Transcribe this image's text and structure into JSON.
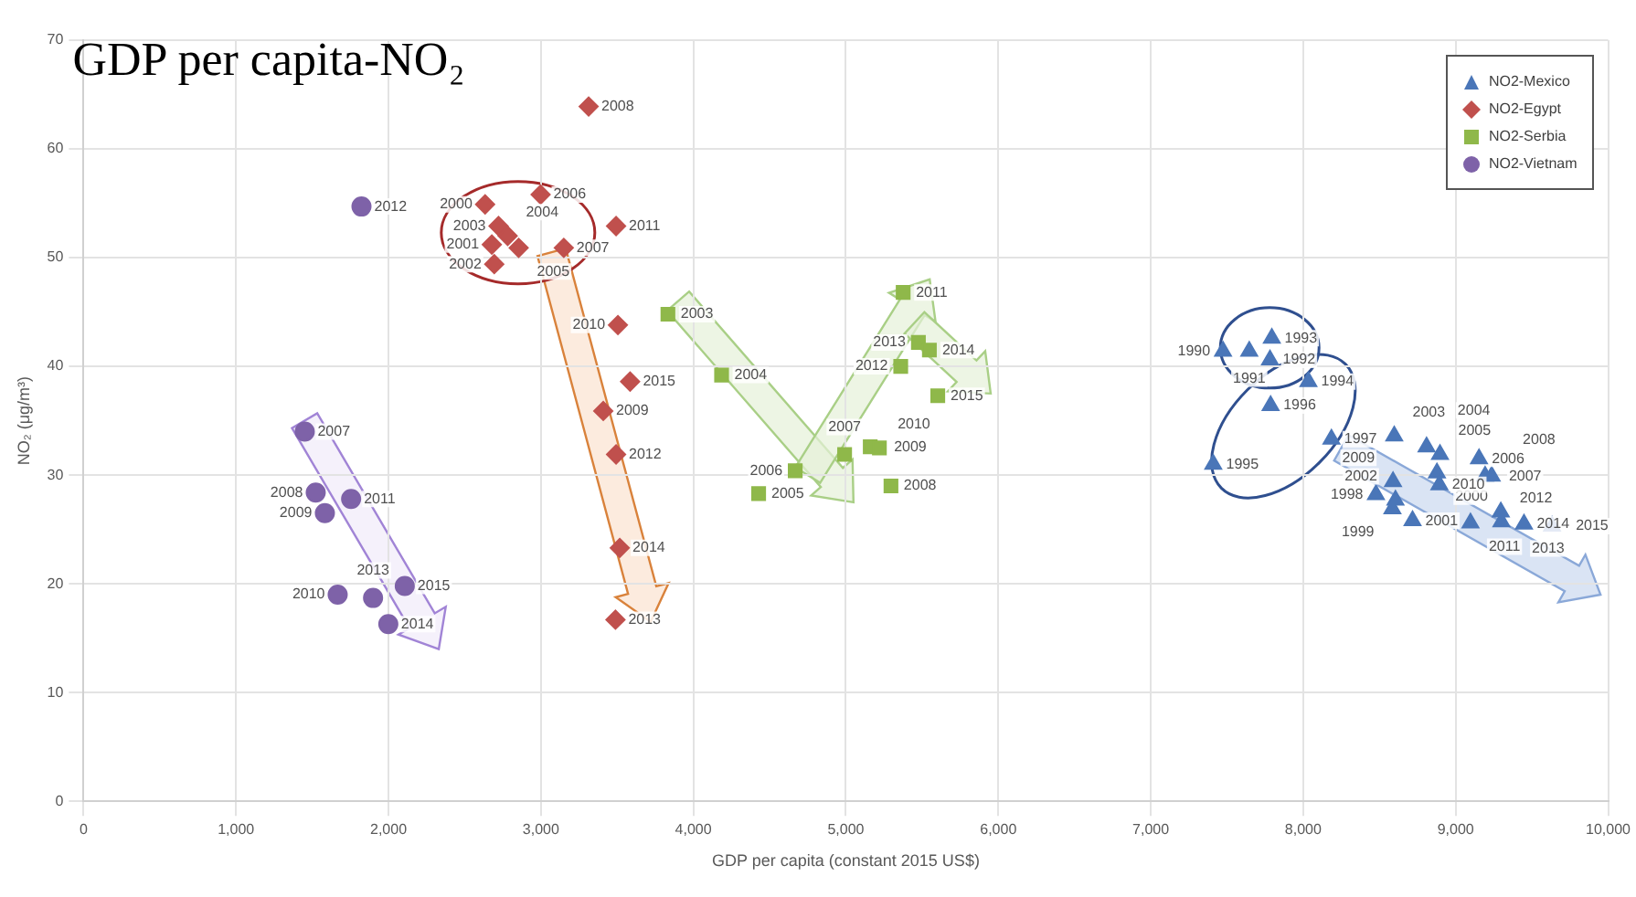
{
  "chart_data": {
    "type": "scatter",
    "title": "GDP per capita-NO₂",
    "xlabel": "GDP per capita (constant 2015 US$)",
    "ylabel": "NO₂ (μg/m³)",
    "xlim": [
      0,
      10000
    ],
    "xticks": [
      0,
      {
        "value": 1000,
        "label": "1,000"
      },
      {
        "value": 2000,
        "label": "2,000"
      },
      {
        "value": 3000,
        "label": "3,000"
      },
      {
        "value": 4000,
        "label": "4,000"
      },
      {
        "value": 5000,
        "label": "5,000"
      },
      {
        "value": 6000,
        "label": "6,000"
      },
      {
        "value": 7000,
        "label": "7,000"
      },
      {
        "value": 8000,
        "label": "8,000"
      },
      {
        "value": 9000,
        "label": "9,000"
      },
      {
        "value": 10000,
        "label": "10,000"
      }
    ],
    "ylim": [
      0,
      70
    ],
    "yticks": [
      0,
      10,
      20,
      30,
      40,
      50,
      60,
      70
    ],
    "grid": true,
    "legend": "top right",
    "series": [
      {
        "name": "NO2-Mexico",
        "color": "#4a76b8",
        "marker": "triangle",
        "x": [
          7474,
          7646,
          7782,
          7794,
          8034,
          7410,
          7786,
          8185,
          8477,
          8585,
          8877,
          8717,
          8605,
          8597,
          8809,
          8897,
          9153,
          9193,
          9236,
          8589,
          8893,
          9097,
          9300,
          9296,
          9448,
          9632
        ],
        "values": [
          41.4,
          41.4,
          40.6,
          42.6,
          38.6,
          31.0,
          36.4,
          33.3,
          28.2,
          26.9,
          30.2,
          25.8,
          27.7,
          33.6,
          32.6,
          31.9,
          31.5,
          29.9,
          29.9,
          29.4,
          29.1,
          25.6,
          25.7,
          26.6,
          25.5,
          25.3
        ]
      },
      {
        "name": "NO2-Egypt",
        "color": "#c0504d",
        "marker": "diamond",
        "x": [
          2634,
          2678,
          2694,
          2722,
          2782,
          2854,
          2998,
          3150,
          3313,
          3409,
          3505,
          3493,
          3493,
          3489,
          3517,
          3585
        ],
        "values": [
          54.9,
          51.2,
          49.4,
          52.9,
          52.0,
          50.9,
          55.8,
          50.9,
          63.9,
          35.9,
          43.8,
          52.9,
          31.9,
          16.7,
          23.3,
          38.6
        ]
      },
      {
        "name": "NO2-Serbia",
        "color": "#8fb84a",
        "marker": "square",
        "x": [
          3833,
          4185,
          4428,
          4668,
          4992,
          5296,
          5160,
          5220,
          5376,
          5360,
          5476,
          5548,
          5603
        ],
        "values": [
          44.8,
          39.2,
          28.3,
          30.4,
          31.9,
          29.0,
          32.6,
          32.5,
          46.8,
          40.0,
          42.2,
          41.5,
          37.3
        ]
      },
      {
        "name": "NO2-Vietnam",
        "color": "#7e62a8",
        "marker": "circle",
        "x": [
          1451,
          1523,
          1583,
          1667,
          1755,
          1823,
          1899,
          1999,
          2107
        ],
        "values": [
          34.0,
          28.4,
          26.5,
          19.0,
          27.8,
          54.7,
          18.7,
          16.3,
          19.8
        ]
      }
    ],
    "annotations": [
      {
        "text": "1990",
        "x": 7474,
        "y": 41.4
      },
      {
        "text": "1991",
        "x": 7646,
        "y": 41.4
      },
      {
        "text": "1992",
        "x": 7782,
        "y": 40.6
      },
      {
        "text": "1993",
        "x": 7794,
        "y": 42.6
      },
      {
        "text": "1994",
        "x": 8034,
        "y": 38.6
      },
      {
        "text": "1995",
        "x": 7410,
        "y": 31.0
      },
      {
        "text": "1996",
        "x": 7786,
        "y": 36.4
      },
      {
        "text": "1997",
        "x": 8185,
        "y": 33.3
      },
      {
        "text": "1998",
        "x": 8477,
        "y": 28.2
      },
      {
        "text": "1999",
        "x": 8585,
        "y": 26.9
      },
      {
        "text": "2000",
        "x": 8877,
        "y": 30.2
      },
      {
        "text": "2001",
        "x": 8717,
        "y": 25.8
      },
      {
        "text": "2002",
        "x": 8605,
        "y": 27.7
      },
      {
        "text": "2003",
        "x": 8597,
        "y": 33.6
      },
      {
        "text": "2004",
        "x": 8809,
        "y": 32.6
      },
      {
        "text": "2005",
        "x": 8897,
        "y": 31.9
      },
      {
        "text": "2006",
        "x": 9153,
        "y": 31.5
      },
      {
        "text": "2007",
        "x": 9193,
        "y": 29.9
      },
      {
        "text": "2008",
        "x": 9236,
        "y": 29.9
      },
      {
        "text": "2009",
        "x": 8589,
        "y": 29.4
      },
      {
        "text": "2010",
        "x": 8893,
        "y": 29.1
      },
      {
        "text": "2011",
        "x": 9097,
        "y": 25.6
      },
      {
        "text": "2012",
        "x": 9300,
        "y": 25.7
      },
      {
        "text": "2013",
        "x": 9296,
        "y": 26.6
      },
      {
        "text": "2014",
        "x": 9448,
        "y": 25.5
      },
      {
        "text": "2015",
        "x": 9632,
        "y": 25.3
      },
      {
        "text": "2000",
        "x": 2634,
        "y": 54.9
      },
      {
        "text": "2001",
        "x": 2678,
        "y": 51.2
      },
      {
        "text": "2002",
        "x": 2694,
        "y": 49.4
      },
      {
        "text": "2003",
        "x": 2722,
        "y": 52.9
      },
      {
        "text": "2004",
        "x": 2782,
        "y": 52.0
      },
      {
        "text": "2005",
        "x": 2854,
        "y": 50.9
      },
      {
        "text": "2006",
        "x": 2998,
        "y": 55.8
      },
      {
        "text": "2007",
        "x": 3150,
        "y": 50.9
      },
      {
        "text": "2008",
        "x": 3313,
        "y": 63.9
      },
      {
        "text": "2009",
        "x": 3409,
        "y": 35.9
      },
      {
        "text": "2010",
        "x": 3505,
        "y": 43.8
      },
      {
        "text": "2011",
        "x": 3493,
        "y": 52.9
      },
      {
        "text": "2012",
        "x": 3493,
        "y": 31.9
      },
      {
        "text": "2013",
        "x": 3489,
        "y": 16.7
      },
      {
        "text": "2014",
        "x": 3517,
        "y": 23.3
      },
      {
        "text": "2015",
        "x": 3585,
        "y": 38.6
      },
      {
        "text": "2003",
        "x": 3833,
        "y": 44.8
      },
      {
        "text": "2004",
        "x": 4185,
        "y": 39.2
      },
      {
        "text": "2005",
        "x": 4428,
        "y": 28.3
      },
      {
        "text": "2006",
        "x": 4668,
        "y": 30.4
      },
      {
        "text": "2007",
        "x": 4992,
        "y": 31.9
      },
      {
        "text": "2008",
        "x": 5296,
        "y": 29.0
      },
      {
        "text": "2009",
        "x": 5160,
        "y": 32.6
      },
      {
        "text": "2010",
        "x": 5220,
        "y": 32.5
      },
      {
        "text": "2011",
        "x": 5376,
        "y": 46.8
      },
      {
        "text": "2012",
        "x": 5360,
        "y": 40.0
      },
      {
        "text": "2013",
        "x": 5476,
        "y": 42.2
      },
      {
        "text": "2014",
        "x": 5548,
        "y": 41.5
      },
      {
        "text": "2015",
        "x": 5603,
        "y": 37.3
      },
      {
        "text": "2007",
        "x": 1451,
        "y": 34.0
      },
      {
        "text": "2008",
        "x": 1523,
        "y": 28.4
      },
      {
        "text": "2009",
        "x": 1583,
        "y": 26.5
      },
      {
        "text": "2010",
        "x": 1667,
        "y": 19.0
      },
      {
        "text": "2011",
        "x": 1755,
        "y": 27.8
      },
      {
        "text": "2012",
        "x": 1823,
        "y": 54.7
      },
      {
        "text": "2013",
        "x": 1899,
        "y": 18.7
      },
      {
        "text": "2014",
        "x": 1999,
        "y": 16.3
      },
      {
        "text": "2015",
        "x": 2107,
        "y": 19.8
      }
    ]
  }
}
